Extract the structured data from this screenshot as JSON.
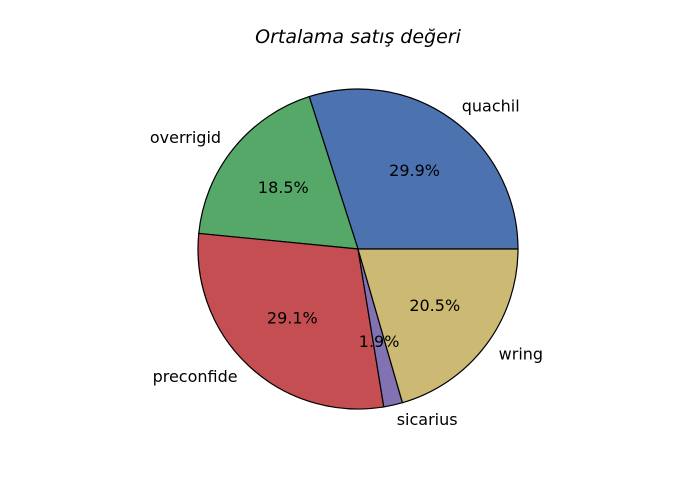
{
  "chart_data": {
    "type": "pie",
    "title": "Ortalama satış değeri",
    "start_angle_deg": 0,
    "direction": "counterclockwise",
    "legend": "none",
    "slices": [
      {
        "label": "quachil",
        "value": 29.9,
        "pct_label": "29.9%",
        "color": "#4c72b0"
      },
      {
        "label": "overrigid",
        "value": 18.5,
        "pct_label": "18.5%",
        "color": "#55a868"
      },
      {
        "label": "preconfide",
        "value": 29.1,
        "pct_label": "29.1%",
        "color": "#c44e52"
      },
      {
        "label": "sicarius",
        "value": 1.9,
        "pct_label": "1.9%",
        "color": "#8172b2"
      },
      {
        "label": "wring",
        "value": 20.5,
        "pct_label": "20.5%",
        "color": "#ccb974"
      }
    ]
  }
}
